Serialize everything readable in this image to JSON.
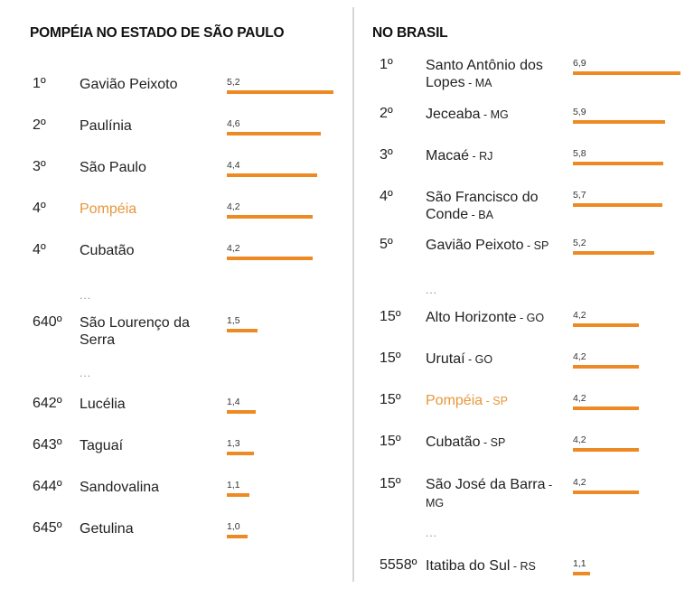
{
  "chart_data": [
    {
      "type": "bar",
      "orientation": "horizontal",
      "title": "POMPÉIA NO ESTADO DE SÃO PAULO",
      "highlight_color": "#e8963a",
      "bar_color": "#ee8a24",
      "rows": [
        {
          "rank": "1º",
          "name": "Gavião Peixoto",
          "uf": "",
          "value": 5.2,
          "label": "5,2",
          "highlight": false
        },
        {
          "rank": "2º",
          "name": "Paulínia",
          "uf": "",
          "value": 4.6,
          "label": "4,6",
          "highlight": false
        },
        {
          "rank": "3º",
          "name": "São Paulo",
          "uf": "",
          "value": 4.4,
          "label": "4,4",
          "highlight": false
        },
        {
          "rank": "4º",
          "name": "Pompéia",
          "uf": "",
          "value": 4.2,
          "label": "4,2",
          "highlight": true
        },
        {
          "rank": "4º",
          "name": "Cubatão",
          "uf": "",
          "value": 4.2,
          "label": "4,2",
          "highlight": false
        },
        {
          "ellipsis": "..."
        },
        {
          "rank": "640º",
          "name": "São Lourenço da Serra",
          "uf": "",
          "value": 1.5,
          "label": "1,5",
          "highlight": false
        },
        {
          "ellipsis": "..."
        },
        {
          "rank": "642º",
          "name": "Lucélia",
          "uf": "",
          "value": 1.4,
          "label": "1,4",
          "highlight": false
        },
        {
          "rank": "643º",
          "name": "Taguaí",
          "uf": "",
          "value": 1.3,
          "label": "1,3",
          "highlight": false
        },
        {
          "rank": "644º",
          "name": "Sandovalina",
          "uf": "",
          "value": 1.1,
          "label": "1,1",
          "highlight": false
        },
        {
          "rank": "645º",
          "name": "Getulina",
          "uf": "",
          "value": 1.0,
          "label": "1,0",
          "highlight": false
        }
      ]
    },
    {
      "type": "bar",
      "orientation": "horizontal",
      "title": "NO BRASIL",
      "highlight_color": "#e8963a",
      "bar_color": "#ee8a24",
      "rows": [
        {
          "rank": "1º",
          "name": "Santo Antônio dos Lopes",
          "uf": "MA",
          "value": 6.9,
          "label": "6,9",
          "highlight": false
        },
        {
          "rank": "2º",
          "name": "Jeceaba",
          "uf": "MG",
          "value": 5.9,
          "label": "5,9",
          "highlight": false
        },
        {
          "rank": "3º",
          "name": "Macaé",
          "uf": "RJ",
          "value": 5.8,
          "label": "5,8",
          "highlight": false
        },
        {
          "rank": "4º",
          "name": "São Francisco do Conde",
          "uf": "BA",
          "value": 5.7,
          "label": "5,7",
          "highlight": false
        },
        {
          "rank": "5º",
          "name": "Gavião Peixoto",
          "uf": "SP",
          "value": 5.2,
          "label": "5,2",
          "highlight": false
        },
        {
          "ellipsis": "..."
        },
        {
          "rank": "15º",
          "name": "Alto Horizonte",
          "uf": "GO",
          "value": 4.2,
          "label": "4,2",
          "highlight": false
        },
        {
          "rank": "15º",
          "name": "Urutaí",
          "uf": "GO",
          "value": 4.2,
          "label": "4,2",
          "highlight": false
        },
        {
          "rank": "15º",
          "name": "Pompéia",
          "uf": "SP",
          "value": 4.2,
          "label": "4,2",
          "highlight": true
        },
        {
          "rank": "15º",
          "name": "Cubatão",
          "uf": "SP",
          "value": 4.2,
          "label": "4,2",
          "highlight": false
        },
        {
          "rank": "15º",
          "name": "São José da Barra",
          "uf": "MG",
          "value": 4.2,
          "label": "4,2",
          "highlight": false
        },
        {
          "ellipsis": "..."
        },
        {
          "rank": "5558º",
          "name": "Itatiba do Sul",
          "uf": "RS",
          "value": 1.1,
          "label": "1,1",
          "highlight": false
        }
      ]
    }
  ]
}
